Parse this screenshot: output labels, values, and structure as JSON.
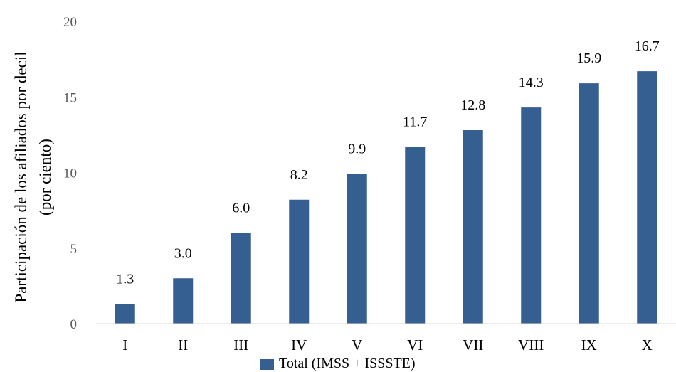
{
  "chart_data": {
    "type": "bar",
    "categories": [
      "I",
      "II",
      "III",
      "IV",
      "V",
      "VI",
      "VII",
      "VIII",
      "IX",
      "X"
    ],
    "series": [
      {
        "name": "Total (IMSS + ISSSTE)",
        "values": [
          1.3,
          3.0,
          6.0,
          8.2,
          9.9,
          11.7,
          12.8,
          14.3,
          15.9,
          16.7
        ],
        "data_labels": [
          "1.3",
          "3.0",
          "6.0",
          "8.2",
          "9.9",
          "11.7",
          "12.8",
          "14.3",
          "15.9",
          "16.7"
        ],
        "color": "#365f91"
      }
    ],
    "ylabel_line1": "Participación de los afiliados por decil",
    "ylabel_line2": "(por ciento)",
    "ylim": [
      0,
      20
    ],
    "yticks": [
      "0",
      "5",
      "10",
      "15",
      "20"
    ],
    "ytick_values": [
      0,
      5,
      10,
      15,
      20
    ],
    "grid": false,
    "legend": "bottom-center"
  }
}
